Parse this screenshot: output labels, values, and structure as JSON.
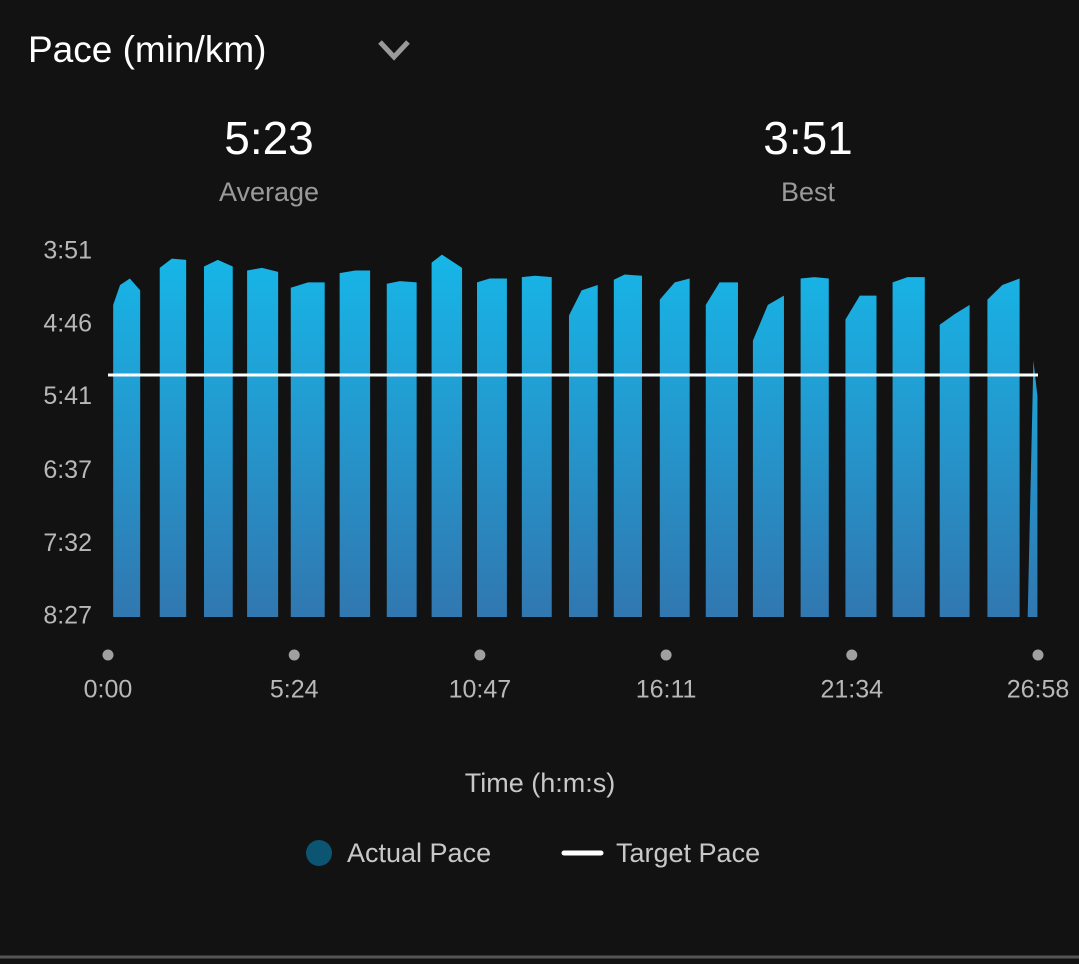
{
  "chart_data": {
    "type": "area",
    "title": "Pace (min/km)",
    "stats": [
      {
        "value": "5:23",
        "label": "Average"
      },
      {
        "value": "3:51",
        "label": "Best"
      }
    ],
    "x_label": "Time (h:m:s)",
    "x": [
      9,
      21,
      38,
      56,
      73,
      90,
      111,
      136,
      150,
      167,
      191,
      217,
      230,
      242,
      268,
      296,
      307,
      318,
      348,
      377,
      390,
      403,
      430,
      456,
      470,
      485,
      508,
      537,
      550,
      563,
      581,
      616,
      629,
      642,
      664,
      694,
      707,
      720,
      743,
      772,
      787,
      802,
      824,
      852,
      866,
      880,
      899,
      929,
      945,
      960,
      986,
      1012,
      1026,
      1040,
      1064,
      1096,
      1109,
      1122,
      1148,
      1176,
      1190,
      1205,
      1229,
      1254,
      1268,
      1283,
      1308,
      1337,
      1351,
      1365,
      1391,
      1421,
      1434,
      1447,
      1473,
      1499,
      1515,
      1530,
      1556,
      1586,
      1593,
      1600,
      1610,
      1617
    ],
    "series": [
      {
        "name": "Actual Pace",
        "color": "#17b6e8",
        "color_bottom": "#3177b0",
        "legend_color": "#0b5573",
        "values": [
          271,
          256,
          251,
          260,
          null,
          243,
          236,
          237,
          null,
          242,
          237,
          242,
          null,
          245,
          243,
          246,
          null,
          258,
          254,
          254,
          null,
          247,
          245,
          245,
          null,
          255,
          253,
          254,
          null,
          239,
          233,
          243,
          null,
          254,
          251,
          251,
          null,
          250,
          249,
          250,
          null,
          279,
          260,
          256,
          null,
          252,
          248,
          249,
          null,
          267,
          254,
          251,
          null,
          271,
          254,
          254,
          null,
          298,
          271,
          264,
          null,
          251,
          250,
          251,
          null,
          282,
          264,
          264,
          null,
          254,
          250,
          250,
          null,
          286,
          278,
          271,
          null,
          267,
          256,
          251,
          null,
          507,
          313,
          340
        ]
      },
      {
        "name": "Target Pace",
        "color": "#ffffff",
        "x": [
          0,
          1618
        ],
        "values": [
          324,
          324
        ]
      }
    ],
    "xlim": [
      0,
      1618
    ],
    "xticks": [
      {
        "value": 0,
        "label": "0:00"
      },
      {
        "value": 324,
        "label": "5:24"
      },
      {
        "value": 647,
        "label": "10:47"
      },
      {
        "value": 971,
        "label": "16:11"
      },
      {
        "value": 1294,
        "label": "21:34"
      },
      {
        "value": 1618,
        "label": "26:58"
      }
    ],
    "ylim": [
      231,
      507
    ],
    "y_inverted": true,
    "yticks": [
      {
        "value": 231,
        "label": "3:51"
      },
      {
        "value": 286,
        "label": "4:46"
      },
      {
        "value": 341,
        "label": "5:41"
      },
      {
        "value": 397,
        "label": "6:37"
      },
      {
        "value": 452,
        "label": "7:32"
      },
      {
        "value": 507,
        "label": "8:27"
      }
    ]
  }
}
